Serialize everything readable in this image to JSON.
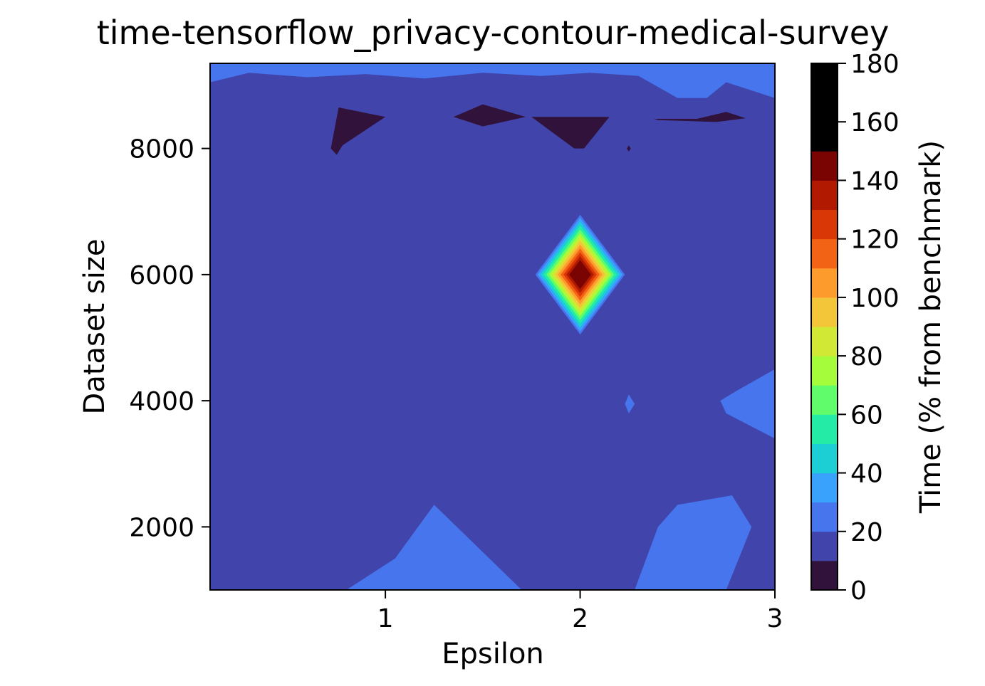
{
  "chart_data": {
    "type": "contour",
    "title": "time-tensorflow_privacy-contour-medical-survey",
    "xlabel": "Epsilon",
    "ylabel": "Dataset size",
    "colorbar_label": "Time (% from benchmark)",
    "xlim": [
      0.1,
      3.0
    ],
    "ylim": [
      1000,
      9350
    ],
    "x_ticks": [
      1,
      2,
      3
    ],
    "y_ticks": [
      2000,
      4000,
      6000,
      8000
    ],
    "colorbar_ticks": [
      0,
      20,
      40,
      60,
      80,
      100,
      120,
      140,
      160,
      180
    ],
    "colorbar_levels": [
      0,
      10,
      20,
      30,
      40,
      50,
      60,
      70,
      80,
      90,
      100,
      110,
      120,
      130,
      140,
      150,
      160,
      170,
      180
    ],
    "level_colors": [
      "#30123b",
      "#4145ab",
      "#4675ed",
      "#39a2fc",
      "#1bcfd4",
      "#24eca6",
      "#61fc6c",
      "#a4fc3b",
      "#d1e834",
      "#f3c63a",
      "#fe9b2d",
      "#f36315",
      "#d93806",
      "#b11901",
      "#7a0402"
    ],
    "grid": false,
    "regions": [
      {
        "level": 1,
        "points": [
          [
            0.1,
            1000
          ],
          [
            3.0,
            1000
          ],
          [
            3.0,
            9350
          ],
          [
            0.1,
            9350
          ]
        ]
      },
      {
        "level": 2,
        "points": [
          [
            0.1,
            9050
          ],
          [
            0.3,
            9200
          ],
          [
            0.6,
            9130
          ],
          [
            0.9,
            9180
          ],
          [
            1.2,
            9110
          ],
          [
            1.5,
            9200
          ],
          [
            1.8,
            9150
          ],
          [
            2.05,
            9200
          ],
          [
            2.3,
            9150
          ],
          [
            2.5,
            8800
          ],
          [
            2.65,
            8800
          ],
          [
            2.75,
            9050
          ],
          [
            2.85,
            8950
          ],
          [
            3.0,
            8800
          ],
          [
            3.0,
            9350
          ],
          [
            0.1,
            9350
          ]
        ]
      },
      {
        "level": 2,
        "points": [
          [
            0.8,
            1000
          ],
          [
            1.05,
            1500
          ],
          [
            1.25,
            2350
          ],
          [
            1.45,
            1750
          ],
          [
            1.7,
            1000
          ]
        ]
      },
      {
        "level": 2,
        "points": [
          [
            2.28,
            1000
          ],
          [
            2.4,
            2000
          ],
          [
            2.5,
            2350
          ],
          [
            2.78,
            2500
          ],
          [
            2.88,
            2000
          ],
          [
            2.75,
            1000
          ]
        ]
      },
      {
        "level": 2,
        "points": [
          [
            3.0,
            3400
          ],
          [
            2.75,
            3800
          ],
          [
            2.72,
            4000
          ],
          [
            2.8,
            4150
          ],
          [
            3.0,
            4500
          ]
        ]
      },
      {
        "level": 2,
        "points": [
          [
            2.23,
            3950
          ],
          [
            2.25,
            4100
          ],
          [
            2.28,
            3950
          ],
          [
            2.25,
            3800
          ]
        ]
      },
      {
        "level": 0,
        "points": [
          [
            0.72,
            8000
          ],
          [
            0.76,
            8650
          ],
          [
            1.0,
            8500
          ],
          [
            0.78,
            8050
          ],
          [
            0.75,
            7900
          ]
        ]
      },
      {
        "level": 0,
        "points": [
          [
            1.35,
            8500
          ],
          [
            1.5,
            8700
          ],
          [
            1.72,
            8500
          ],
          [
            1.5,
            8350
          ]
        ]
      },
      {
        "level": 0,
        "points": [
          [
            1.75,
            8500
          ],
          [
            1.97,
            8000
          ],
          [
            2.02,
            8000
          ],
          [
            2.15,
            8500
          ]
        ]
      },
      {
        "level": 0,
        "points": [
          [
            2.38,
            8470
          ],
          [
            2.6,
            8470
          ],
          [
            2.75,
            8580
          ],
          [
            2.85,
            8480
          ],
          [
            2.7,
            8420
          ],
          [
            2.4,
            8450
          ]
        ]
      },
      {
        "level": 0,
        "points": [
          [
            2.24,
            8000
          ],
          [
            2.25,
            8050
          ],
          [
            2.26,
            8000
          ],
          [
            2.25,
            7950
          ]
        ]
      }
    ],
    "peak": {
      "x": 2.0,
      "y": 6000,
      "half_width_x": 0.23,
      "half_height_y": 950,
      "max_value": 178,
      "base_value": 22
    }
  }
}
